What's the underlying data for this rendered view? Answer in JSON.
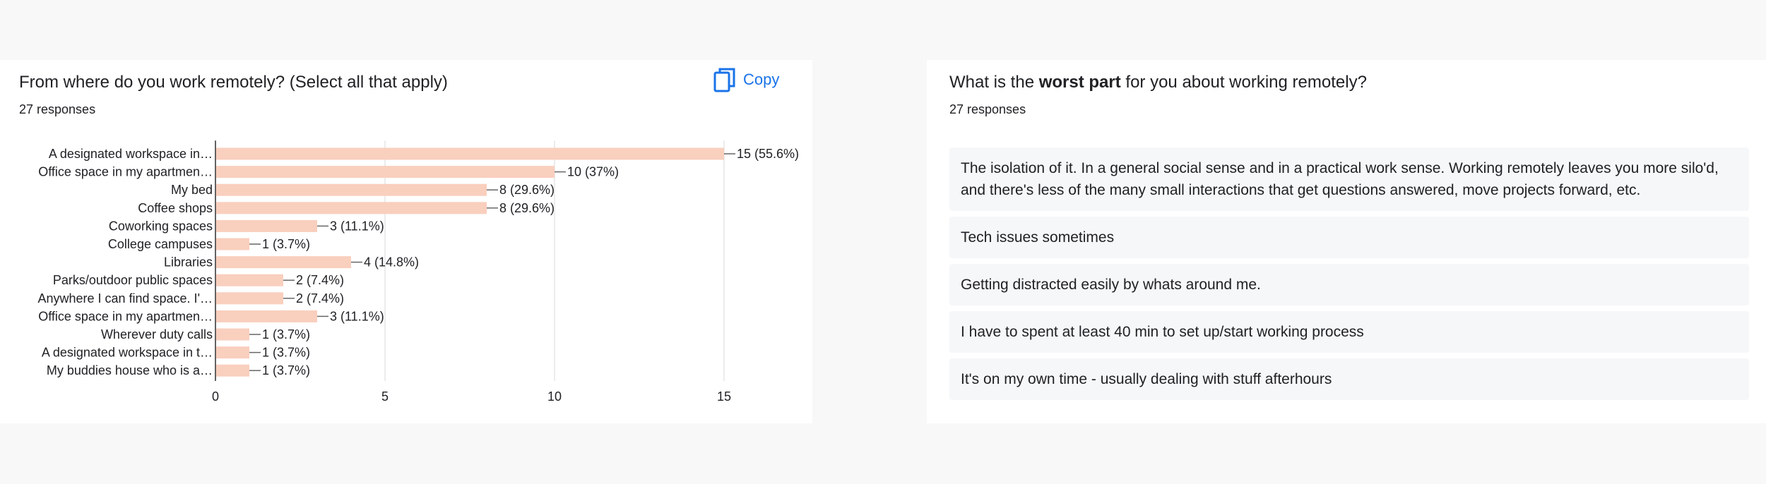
{
  "left": {
    "title": "From where do you work remotely? (Select all that apply)",
    "responses": "27 responses",
    "copy_label": "Copy"
  },
  "right": {
    "title_before": "What is the ",
    "title_bold": "worst part",
    "title_after": " for you about working remotely?",
    "responses": "27 responses",
    "items": [
      "The isolation of it. In a general social sense and in a practical work sense. Working remotely leaves you more silo'd, and there's less of the many small interactions that get questions answered, move projects forward, etc.",
      "Tech issues sometimes",
      "Getting distracted easily by whats around me.",
      "I have to spent at least 40 min to set up/start working process",
      "It's on my own time - usually dealing with stuff afterhours"
    ]
  },
  "colors": {
    "bar": "#f9cfbe",
    "accent": "#1a73e8",
    "grid": "#e6e6e6"
  },
  "chart_data": {
    "type": "bar",
    "orientation": "horizontal",
    "categories": [
      "A designated workspace in…",
      "Office space in my apartmen…",
      "My bed",
      "Coffee shops",
      "Coworking spaces",
      "College campuses",
      "Libraries",
      "Parks/outdoor public spaces",
      "Anywhere I can find space. I'…",
      "Office space in my apartmen…",
      "Wherever duty calls",
      "A designated workspace in t…",
      "My buddies house who is a…"
    ],
    "values": [
      15,
      10,
      8,
      8,
      3,
      1,
      4,
      2,
      2,
      3,
      1,
      1,
      1
    ],
    "data_labels": [
      "15 (55.6%)",
      "10 (37%)",
      "8 (29.6%)",
      "8 (29.6%)",
      "3 (11.1%)",
      "1 (3.7%)",
      "4 (14.8%)",
      "2 (7.4%)",
      "2 (7.4%)",
      "3 (11.1%)",
      "1 (3.7%)",
      "1 (3.7%)",
      "1 (3.7%)"
    ],
    "xticks": [
      0,
      5,
      10,
      15
    ],
    "xlim": [
      0,
      15
    ],
    "grid": true
  }
}
